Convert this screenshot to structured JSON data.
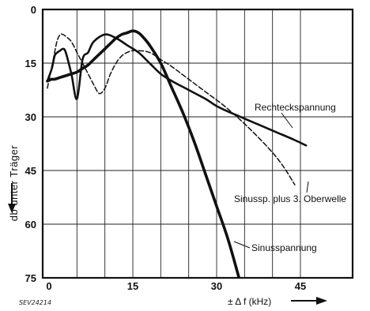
{
  "chart_data": {
    "type": "line",
    "xlabel": "± Δ f (kHz)",
    "ylabel": "db unter Träger",
    "xlim": [
      0,
      50
    ],
    "ylim": [
      0,
      75
    ],
    "y_inverted": true,
    "x_ticks": [
      0,
      15,
      30,
      45
    ],
    "y_ticks": [
      0,
      15,
      30,
      45,
      60,
      75
    ],
    "grid": true,
    "series": [
      {
        "name": "Rechteckspannung",
        "style": "solid",
        "x": [
          -0.3,
          0.5,
          1,
          1.5,
          2,
          2.5,
          3,
          4,
          5,
          6,
          7,
          8,
          10,
          12,
          14,
          16,
          18,
          20,
          22,
          25,
          28,
          30,
          32,
          35,
          38,
          41,
          44,
          46
        ],
        "y": [
          20,
          16.5,
          13,
          12,
          11.5,
          11,
          12,
          18,
          25,
          14,
          12,
          9,
          7,
          8,
          10,
          12,
          15,
          18,
          20,
          22.5,
          25,
          27,
          28.5,
          30.5,
          32.5,
          34.5,
          36.5,
          38
        ]
      },
      {
        "name": "Sinussp. plus 3. Oberwelle",
        "style": "dashed",
        "x": [
          -0.3,
          0.5,
          1,
          1.5,
          2,
          2.5,
          3,
          4,
          5,
          6,
          7,
          8,
          9,
          10,
          11,
          12,
          13,
          14,
          15,
          16,
          18,
          20,
          22,
          25,
          28,
          31,
          34,
          37,
          40,
          42,
          44
        ],
        "y": [
          22,
          16,
          12,
          8.5,
          7,
          7,
          7.5,
          9,
          12,
          15,
          18,
          21,
          23.5,
          22,
          18,
          15,
          13,
          12,
          11.5,
          11.5,
          12,
          14,
          16,
          19.5,
          23,
          26.5,
          30.5,
          35,
          40,
          44,
          49
        ]
      },
      {
        "name": "Sinusspannung",
        "style": "solid",
        "x": [
          -0.3,
          0.5,
          1,
          2,
          3,
          4,
          5,
          6,
          7,
          8,
          9,
          10,
          11,
          12,
          13,
          14,
          15,
          16,
          17,
          18,
          20,
          22,
          24,
          26,
          28,
          30,
          32,
          34
        ],
        "y": [
          20,
          19.5,
          19.5,
          19,
          18.5,
          18,
          17.5,
          16.5,
          15.5,
          14,
          12.5,
          11,
          9.5,
          8,
          7,
          6.5,
          6,
          6.5,
          8,
          10,
          15,
          22,
          29,
          37,
          46,
          55,
          64,
          75
        ]
      }
    ],
    "annotations": [
      {
        "text": "Rechteckspannung"
      },
      {
        "text": "Sinussp. plus 3. Oberwelle"
      },
      {
        "text": "Sinusspannung"
      },
      {
        "text": "SEV24214"
      }
    ]
  }
}
